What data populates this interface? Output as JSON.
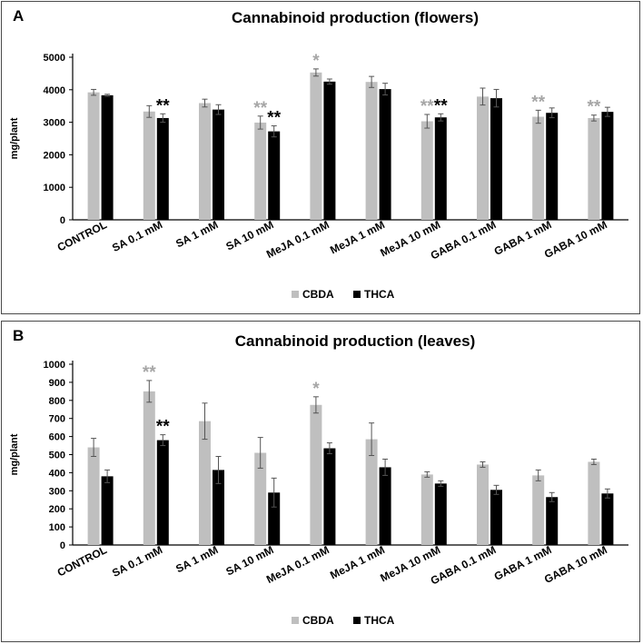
{
  "chart_data": [
    {
      "panel": "A",
      "type": "bar",
      "title": "Cannabinoid production (flowers)",
      "xlabel": "",
      "ylabel": "mg/plant",
      "ylim": [
        0,
        5000
      ],
      "yticks": [
        0,
        1000,
        2000,
        3000,
        4000,
        5000
      ],
      "grid": false,
      "legend": "bottom",
      "categories": [
        "CONTROL",
        "SA 0.1 mM",
        "SA 1 mM",
        "SA 10 mM",
        "MeJA 0.1 mM",
        "MeJA 1 mM",
        "MeJA 10 mM",
        "GABA 0.1 mM",
        "GABA 1 mM",
        "GABA 10 mM"
      ],
      "series": [
        {
          "name": "CBDA",
          "color": "#bfbfbf",
          "values": [
            3920,
            3330,
            3590,
            2990,
            4530,
            4240,
            3030,
            3790,
            3170,
            3130
          ],
          "errors": [
            90,
            180,
            120,
            200,
            110,
            170,
            210,
            260,
            200,
            90
          ],
          "significance": [
            "",
            "",
            "",
            "**",
            "*",
            "",
            "**",
            "",
            "**",
            "**"
          ]
        },
        {
          "name": "THCA",
          "color": "#000000",
          "values": [
            3830,
            3130,
            3390,
            2720,
            4250,
            4020,
            3150,
            3740,
            3290,
            3320
          ],
          "errors": [
            30,
            130,
            150,
            170,
            80,
            180,
            110,
            270,
            150,
            140
          ],
          "significance": [
            "",
            "**",
            "",
            "**",
            "",
            "",
            "**",
            "",
            "",
            ""
          ]
        }
      ]
    },
    {
      "panel": "B",
      "type": "bar",
      "title": "Cannabinoid production (leaves)",
      "xlabel": "",
      "ylabel": "mg/plant",
      "ylim": [
        0,
        1000
      ],
      "yticks": [
        0,
        100,
        200,
        300,
        400,
        500,
        600,
        700,
        800,
        900,
        1000
      ],
      "grid": false,
      "legend": "bottom",
      "categories": [
        "CONTROL",
        "SA 0.1 mM",
        "SA 1 mM",
        "SA 10 mM",
        "MeJA 0.1 mM",
        "MeJA 1 mM",
        "MeJA 10 mM",
        "GABA 0.1 mM",
        "GABA 1 mM",
        "GABA 10 mM"
      ],
      "series": [
        {
          "name": "CBDA",
          "color": "#bfbfbf",
          "values": [
            540,
            850,
            685,
            510,
            775,
            585,
            390,
            445,
            385,
            460
          ],
          "errors": [
            50,
            60,
            100,
            85,
            45,
            90,
            15,
            15,
            30,
            15
          ],
          "significance": [
            "",
            "**",
            "",
            "",
            "*",
            "",
            "",
            "",
            "",
            ""
          ]
        },
        {
          "name": "THCA",
          "color": "#000000",
          "values": [
            380,
            580,
            415,
            290,
            535,
            430,
            340,
            305,
            265,
            285
          ],
          "errors": [
            35,
            30,
            75,
            80,
            30,
            45,
            15,
            25,
            25,
            25
          ],
          "significance": [
            "",
            "**",
            "",
            "",
            "",
            "",
            "",
            "",
            "",
            ""
          ]
        }
      ]
    }
  ]
}
